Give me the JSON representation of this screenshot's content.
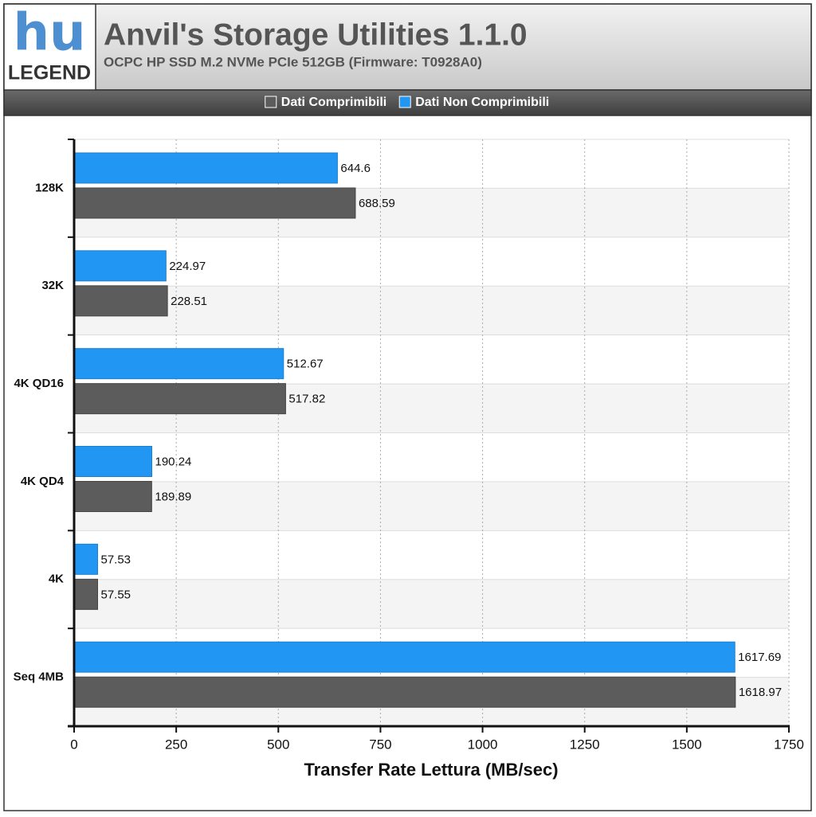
{
  "logo": {
    "mark": "hu",
    "word": "LEGEND"
  },
  "chart_data": {
    "type": "bar",
    "orientation": "horizontal",
    "title": "Anvil's Storage Utilities 1.1.0",
    "subtitle": "OCPC HP SSD M.2 NVMe PCIe 512GB (Firmware: T0928A0)",
    "x_label": "Transfer Rate Lettura (MB/sec)",
    "categories": [
      "128K",
      "32K",
      "4K QD16",
      "4K QD4",
      "4K",
      "Seq 4MB"
    ],
    "series": [
      {
        "name": "Dati Comprimibili",
        "color": "#5c5c5c",
        "values": [
          688.59,
          228.51,
          517.82,
          189.89,
          57.55,
          1618.97
        ]
      },
      {
        "name": "Dati Non Comprimibili",
        "color": "#2196f3",
        "values": [
          644.6,
          224.97,
          512.67,
          190.24,
          57.53,
          1617.69
        ]
      }
    ],
    "xlim": [
      0,
      1750
    ],
    "xticks": [
      0,
      250,
      500,
      750,
      1000,
      1250,
      1500,
      1750
    ],
    "grid": true,
    "legend": "top"
  }
}
